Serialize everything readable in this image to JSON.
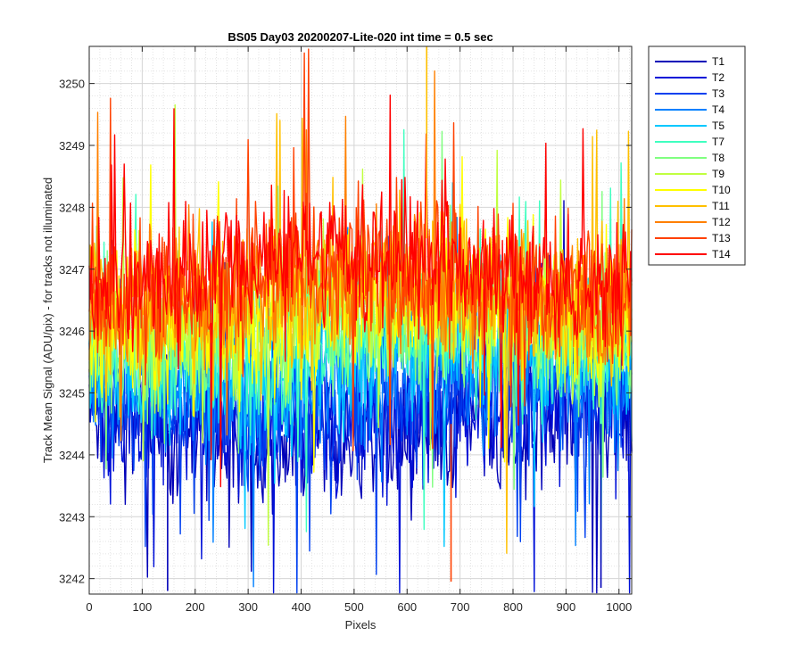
{
  "chart_data": {
    "type": "line",
    "title": "BS05 Day03 20200207-Lite-020 int time = 0.5 sec",
    "xlabel": "Pixels",
    "ylabel": "Track Mean Signal (ADU/pix) - for tracks not illuminated",
    "xlim": [
      0,
      1024
    ],
    "ylim": [
      3241.75,
      3250.6
    ],
    "x_ticks": [
      0,
      100,
      200,
      300,
      400,
      500,
      600,
      700,
      800,
      900,
      1000
    ],
    "y_ticks": [
      3242,
      3243,
      3244,
      3245,
      3246,
      3247,
      3248,
      3249,
      3250
    ],
    "grid": "on (major and minor)",
    "legend_position": "outside-right",
    "series": [
      {
        "name": "T1",
        "color": "#0000b8",
        "mean": 3244.4,
        "noise": 0.9
      },
      {
        "name": "T2",
        "color": "#0010d8",
        "mean": 3244.6,
        "noise": 0.9
      },
      {
        "name": "T3",
        "color": "#0040f0",
        "mean": 3244.9,
        "noise": 0.9
      },
      {
        "name": "T4",
        "color": "#0080ff",
        "mean": 3245.2,
        "noise": 0.9
      },
      {
        "name": "T5",
        "color": "#00c8ff",
        "mean": 3245.5,
        "noise": 0.9
      },
      {
        "name": "T7",
        "color": "#40ffc0",
        "mean": 3245.8,
        "noise": 0.9
      },
      {
        "name": "T8",
        "color": "#80ff80",
        "mean": 3246.0,
        "noise": 0.9
      },
      {
        "name": "T9",
        "color": "#c0ff40",
        "mean": 3246.2,
        "noise": 0.9
      },
      {
        "name": "T10",
        "color": "#ffff00",
        "mean": 3246.3,
        "noise": 0.9
      },
      {
        "name": "T11",
        "color": "#ffc000",
        "mean": 3246.5,
        "noise": 0.9
      },
      {
        "name": "T12",
        "color": "#ff8000",
        "mean": 3246.6,
        "noise": 0.9
      },
      {
        "name": "T13",
        "color": "#ff4000",
        "mean": 3246.8,
        "noise": 0.9
      },
      {
        "name": "T14",
        "color": "#ff0000",
        "mean": 3247.0,
        "noise": 0.8
      }
    ],
    "notable_points": [
      {
        "series": "T11",
        "x": 637,
        "y": 3250.6
      },
      {
        "series": "T13",
        "x": 683,
        "y": 3241.95
      },
      {
        "series": "T1",
        "x": 148,
        "y": 3241.8
      },
      {
        "series": "T1",
        "x": 966,
        "y": 3241.85
      }
    ]
  }
}
